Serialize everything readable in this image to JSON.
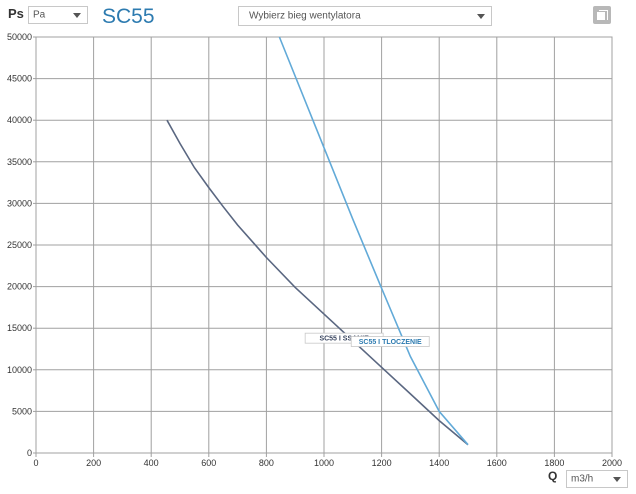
{
  "header": {
    "ps_label": "Ps",
    "pressure_unit": "Pa",
    "title": "SC55",
    "gear_placeholder": "Wybierz bieg wentylatora"
  },
  "footer": {
    "q_label": "Q",
    "flow_unit": "m3/h"
  },
  "colors": {
    "title": "#2d7bb0",
    "ssanie": "#5a6781",
    "tloczenie": "#62aad8",
    "grid": "#a0a0a0"
  },
  "chart_data": {
    "type": "line",
    "x_ticks": [
      "0",
      "200",
      "400",
      "600",
      "800",
      "1000",
      "1200",
      "1400",
      "1600",
      "1800",
      "2000"
    ],
    "y_ticks": [
      "0",
      "5000",
      "10000",
      "15000",
      "20000",
      "25000",
      "30000",
      "35000",
      "40000",
      "45000",
      "50000"
    ],
    "xlim": [
      0,
      2000
    ],
    "ylim": [
      0,
      50000
    ],
    "grid": true,
    "series": [
      {
        "name": "SC55 I SSANIE",
        "color": "#5a6781",
        "points": [
          [
            455,
            40000
          ],
          [
            500,
            37200
          ],
          [
            550,
            34300
          ],
          [
            600,
            31900
          ],
          [
            650,
            29600
          ],
          [
            700,
            27400
          ],
          [
            800,
            23500
          ],
          [
            900,
            19900
          ],
          [
            1000,
            16700
          ],
          [
            1100,
            13500
          ],
          [
            1200,
            10300
          ],
          [
            1300,
            7100
          ],
          [
            1400,
            3900
          ],
          [
            1500,
            1000
          ]
        ]
      },
      {
        "name": "SC55 I TLOCZENIE",
        "color": "#62aad8",
        "points": [
          [
            845,
            50000
          ],
          [
            1000,
            36700
          ],
          [
            1100,
            28100
          ],
          [
            1200,
            19800
          ],
          [
            1300,
            11600
          ],
          [
            1400,
            5000
          ],
          [
            1500,
            1000
          ]
        ]
      }
    ]
  }
}
